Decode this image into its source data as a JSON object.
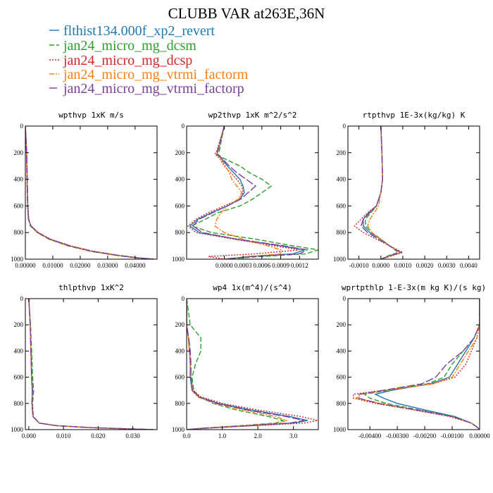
{
  "figure_title": "CLUBB VAR at263E,36N",
  "legend": [
    {
      "label": "flthist134.000f_xp2_revert",
      "color": "#1f77b4",
      "dash": "solid"
    },
    {
      "label": "jan24_micro_mg_dcsm",
      "color": "#2ca02c",
      "dash": "dashed"
    },
    {
      "label": "jan24_micro_mg_dcsp",
      "color": "#d62728",
      "dash": "dotted"
    },
    {
      "label": "jan24_micro_mg_vtrmi_factorm",
      "color": "#ff7f0e",
      "dash": "dashdot"
    },
    {
      "label": "jan24_micro_mg_vtrmi_factorp",
      "color": "#7b3f9e",
      "dash": "longdash"
    }
  ],
  "chart_data": [
    {
      "type": "line",
      "title": "wpthvp   1xK m/s",
      "xlim": [
        0,
        0.048
      ],
      "ylim": [
        1000,
        0
      ],
      "xticks": [
        0,
        0.01,
        0.02,
        0.03,
        0.04
      ],
      "xtick_labels": [
        "0.00000",
        "0.01000",
        "0.02000",
        "0.03000",
        "0.04000"
      ],
      "yticks": [
        0,
        200,
        400,
        600,
        800,
        1000
      ],
      "ytick_labels": [
        "0",
        "200",
        "400",
        "600",
        "800",
        "1000"
      ],
      "y": [
        0,
        200,
        400,
        600,
        700,
        750,
        800,
        850,
        900,
        940,
        970,
        990,
        1000
      ],
      "series": [
        {
          "values": [
            0,
            0.0005,
            0.0007,
            0.0009,
            0.0012,
            0.002,
            0.0045,
            0.0088,
            0.016,
            0.024,
            0.033,
            0.041,
            0.047
          ]
        },
        {
          "values": [
            0,
            0.0004,
            0.0006,
            0.0008,
            0.0011,
            0.0018,
            0.0043,
            0.0085,
            0.0155,
            0.0235,
            0.0325,
            0.04,
            0.046
          ]
        },
        {
          "values": [
            0,
            0.0004,
            0.0006,
            0.0008,
            0.0011,
            0.0021,
            0.0048,
            0.0092,
            0.0166,
            0.0248,
            0.0338,
            0.0415,
            0.0468
          ]
        },
        {
          "values": [
            0,
            0.0005,
            0.0007,
            0.0009,
            0.0012,
            0.0019,
            0.0044,
            0.0087,
            0.0158,
            0.0238,
            0.0328,
            0.0405,
            0.0462
          ]
        },
        {
          "values": [
            0,
            0.0005,
            0.0007,
            0.0009,
            0.0012,
            0.002,
            0.0046,
            0.009,
            0.0162,
            0.0243,
            0.0332,
            0.0409,
            0.0465
          ]
        }
      ]
    },
    {
      "type": "line",
      "title": "wp2thvp   1xK m^2/s^2",
      "xlim": [
        -0.0006,
        0.0015
      ],
      "ylim": [
        1000,
        0
      ],
      "xticks": [
        0,
        0.0003,
        0.0006,
        0.0009,
        0.0012
      ],
      "xtick_labels": [
        "0.0000",
        "0.0003",
        "0.0006",
        "0.0009",
        "0.0012"
      ],
      "yticks": [
        0,
        200,
        400,
        600,
        800,
        1000
      ],
      "ytick_labels": [
        "0",
        "200",
        "400",
        "600",
        "800",
        "1000"
      ],
      "y": [
        0,
        190,
        210,
        240,
        300,
        350,
        400,
        450,
        500,
        550,
        600,
        650,
        700,
        750,
        800,
        850,
        900,
        930,
        960,
        980,
        1000
      ],
      "series": [
        {
          "values": [
            0,
            -0.0001,
            -0.00012,
            -5e-05,
            5e-05,
            0.00015,
            0.00025,
            0.0003,
            0.00032,
            0.00025,
            5e-05,
            -0.0002,
            -0.00042,
            -0.00055,
            -0.0004,
            0.0002,
            0.0009,
            0.00128,
            0.0011,
            0.0004,
            0.0
          ]
        },
        {
          "values": [
            0,
            -8e-05,
            -0.00011,
            -2e-05,
            0.00025,
            0.0004,
            0.0006,
            0.00075,
            0.0006,
            0.00045,
            0.00025,
            -0.0001,
            -0.0003,
            -0.00052,
            -0.0002,
            0.0005,
            0.0011,
            0.0015,
            0.0013,
            0.0006,
            0.0
          ]
        },
        {
          "values": [
            0,
            -0.00012,
            -0.00015,
            -8e-05,
            0.0,
            0.0001,
            0.0002,
            0.00028,
            0.0003,
            0.00024,
            0.0,
            -0.00025,
            -0.00045,
            -0.00058,
            -0.00045,
            0.00015,
            0.0008,
            0.0012,
            0.0005,
            -0.00025,
            0.0
          ]
        },
        {
          "values": [
            0,
            -0.0001,
            -0.00012,
            -6e-05,
            2e-05,
            8e-05,
            0.00012,
            0.0002,
            0.00028,
            0.00022,
            5e-05,
            -5e-05,
            -0.00012,
            -0.00015,
            0.0,
            0.0003,
            0.0007,
            0.0009,
            0.0009,
            0.0004,
            0.0
          ]
        },
        {
          "values": [
            0,
            -0.00011,
            -0.00013,
            -4e-05,
            8e-05,
            0.0002,
            0.00035,
            0.0005,
            0.00038,
            0.00026,
            5e-05,
            -0.00018,
            -0.0004,
            -0.0005,
            -0.00035,
            0.0002,
            0.00095,
            0.00132,
            0.0012,
            0.00045,
            0.0
          ]
        }
      ]
    },
    {
      "type": "line",
      "title": "rtpthvp   1E-3x(kg/kg) K",
      "xlim": [
        -0.0015,
        0.0045
      ],
      "ylim": [
        1000,
        0
      ],
      "xticks": [
        -0.001,
        0,
        0.001,
        0.002,
        0.003,
        0.004
      ],
      "xtick_labels": [
        "-0.0010",
        "0.0000",
        "0.0010",
        "0.0020",
        "0.0030",
        "0.0040"
      ],
      "yticks": [
        0,
        200,
        400,
        600,
        800,
        1000
      ],
      "ytick_labels": [
        "0",
        "200",
        "400",
        "600",
        "800",
        "1000"
      ],
      "y": [
        0,
        200,
        400,
        500,
        600,
        650,
        700,
        750,
        800,
        850,
        900,
        950,
        970,
        1000
      ],
      "series": [
        {
          "values": [
            0,
            5e-05,
            8e-05,
            0.0,
            -0.0002,
            -0.00055,
            -0.0008,
            -0.0008,
            -0.0005,
            0.0,
            0.0004,
            0.0009,
            0.0005,
            0.0
          ]
        },
        {
          "values": [
            0,
            5e-05,
            8e-05,
            0.0,
            -0.0002,
            -0.00045,
            -0.0007,
            -0.0007,
            -0.0004,
            0.0,
            0.0004,
            0.0008,
            0.0004,
            0.0
          ]
        },
        {
          "values": [
            0,
            5e-05,
            8e-05,
            0.0,
            -0.0002,
            -0.0006,
            -0.0009,
            -0.0012,
            -0.0008,
            -0.0002,
            0.0004,
            0.001,
            0.0006,
            0.0
          ]
        },
        {
          "values": [
            0,
            5e-05,
            8e-05,
            0.0,
            -0.0001,
            -0.0003,
            -0.0005,
            -0.0006,
            -0.0004,
            0.0,
            0.0004,
            0.0009,
            0.0005,
            0.0
          ]
        },
        {
          "values": [
            0,
            5e-05,
            8e-05,
            0.0,
            -0.0002,
            -0.0005,
            -0.0008,
            -0.0009,
            -0.0006,
            -0.0001,
            0.0004,
            0.0009,
            0.0005,
            0.0
          ]
        }
      ]
    },
    {
      "type": "line",
      "title": "thlpthvp   1xK^2",
      "xlim": [
        -0.001,
        0.037
      ],
      "ylim": [
        1000,
        0
      ],
      "xticks": [
        0,
        0.01,
        0.02,
        0.03
      ],
      "xtick_labels": [
        "0.000",
        "0.010",
        "0.020",
        "0.030"
      ],
      "yticks": [
        0,
        200,
        400,
        600,
        800,
        1000
      ],
      "ytick_labels": [
        "0",
        "200",
        "400",
        "600",
        "800",
        "1000"
      ],
      "y": [
        0,
        200,
        400,
        600,
        700,
        800,
        900,
        950,
        970,
        985,
        995,
        1000
      ],
      "series": [
        {
          "values": [
            0,
            0.0004,
            0.0006,
            0.0008,
            0.0011,
            0.0009,
            0.0012,
            0.003,
            0.008,
            0.018,
            0.03,
            0.036
          ]
        },
        {
          "values": [
            0,
            0.0005,
            0.0008,
            0.0011,
            0.0014,
            0.0011,
            0.0013,
            0.003,
            0.008,
            0.018,
            0.03,
            0.036
          ]
        },
        {
          "values": [
            0,
            0.0004,
            0.0006,
            0.0008,
            0.001,
            0.0009,
            0.0012,
            0.003,
            0.008,
            0.018,
            0.03,
            0.036
          ]
        },
        {
          "values": [
            0,
            0.0004,
            0.0006,
            0.0008,
            0.001,
            0.0009,
            0.0012,
            0.003,
            0.008,
            0.018,
            0.03,
            0.036
          ]
        },
        {
          "values": [
            0,
            0.0004,
            0.0006,
            0.0008,
            0.001,
            0.0009,
            0.0012,
            0.003,
            0.008,
            0.018,
            0.03,
            0.036
          ]
        }
      ]
    },
    {
      "type": "line",
      "title": "wp4   1x(m^4)/(s^4)",
      "xlim": [
        0,
        3.7
      ],
      "ylim": [
        1000,
        0
      ],
      "xticks": [
        0,
        1,
        2,
        3
      ],
      "xtick_labels": [
        "0.0",
        "1.0",
        "2.0",
        "3.0"
      ],
      "yticks": [
        0,
        200,
        400,
        600,
        800,
        1000
      ],
      "ytick_labels": [
        "0",
        "200",
        "400",
        "600",
        "800",
        "1000"
      ],
      "y": [
        0,
        200,
        300,
        400,
        500,
        600,
        700,
        750,
        800,
        850,
        900,
        930,
        950,
        970,
        990,
        1000
      ],
      "series": [
        {
          "values": [
            0,
            0.0,
            0.05,
            0.08,
            0.1,
            0.1,
            0.15,
            0.35,
            0.9,
            1.8,
            2.9,
            3.4,
            3.0,
            1.8,
            0.5,
            0.0
          ]
        },
        {
          "values": [
            0,
            0.1,
            0.4,
            0.4,
            0.25,
            0.15,
            0.2,
            0.35,
            0.75,
            1.4,
            2.3,
            2.7,
            2.5,
            1.5,
            0.4,
            0.0
          ]
        },
        {
          "values": [
            0,
            0.0,
            0.05,
            0.08,
            0.1,
            0.12,
            0.18,
            0.4,
            1.0,
            2.0,
            3.2,
            3.68,
            3.3,
            1.9,
            0.5,
            0.0
          ]
        },
        {
          "values": [
            0,
            0.0,
            0.05,
            0.08,
            0.1,
            0.12,
            0.15,
            0.3,
            0.8,
            1.6,
            2.5,
            2.8,
            2.6,
            1.6,
            0.4,
            0.0
          ]
        },
        {
          "values": [
            0,
            0.0,
            0.06,
            0.1,
            0.12,
            0.12,
            0.16,
            0.35,
            0.85,
            1.7,
            2.8,
            3.3,
            2.9,
            1.7,
            0.5,
            0.0
          ]
        }
      ]
    },
    {
      "type": "line",
      "title": "wprtpthlp   1-E-3x(m kg K)/(s kg)",
      "xlim": [
        -0.0048,
        0.0
      ],
      "ylim": [
        1000,
        0
      ],
      "xticks": [
        -0.004,
        -0.003,
        -0.002,
        -0.001,
        0
      ],
      "xtick_labels": [
        "-0.00400",
        "-0.00300",
        "-0.00200",
        "-0.00100",
        "0.00000"
      ],
      "yticks": [
        0,
        200,
        400,
        600,
        800,
        1000
      ],
      "ytick_labels": [
        "0",
        "200",
        "400",
        "600",
        "800",
        "1000"
      ],
      "y": [
        0,
        200,
        300,
        400,
        500,
        600,
        650,
        700,
        730,
        760,
        800,
        850,
        900,
        950,
        980,
        1000
      ],
      "series": [
        {
          "values": [
            0,
            0.0,
            -0.0002,
            -0.0005,
            -0.0008,
            -0.0011,
            -0.0018,
            -0.0032,
            -0.0038,
            -0.0035,
            -0.003,
            -0.002,
            -0.0009,
            -0.0003,
            -0.0001,
            0.0
          ]
        },
        {
          "values": [
            0,
            0.0,
            -0.0002,
            -0.0006,
            -0.001,
            -0.0013,
            -0.0019,
            -0.0033,
            -0.0042,
            -0.004,
            -0.0034,
            -0.0022,
            -0.001,
            -0.0003,
            -0.0001,
            0.0
          ]
        },
        {
          "values": [
            0,
            0.0,
            -0.0001,
            -0.0003,
            -0.0005,
            -0.0009,
            -0.0017,
            -0.0035,
            -0.0046,
            -0.0046,
            -0.0038,
            -0.0024,
            -0.0011,
            -0.0003,
            -0.0001,
            0.0
          ]
        },
        {
          "values": [
            0,
            0.0,
            -0.0001,
            -0.0004,
            -0.0007,
            -0.001,
            -0.0017,
            -0.0034,
            -0.0043,
            -0.0045,
            -0.0036,
            -0.0023,
            -0.001,
            -0.0003,
            -0.0001,
            0.0
          ]
        },
        {
          "values": [
            0,
            0.0,
            -0.0002,
            -0.0006,
            -0.0012,
            -0.0016,
            -0.0021,
            -0.0035,
            -0.0044,
            -0.0044,
            -0.0037,
            -0.0023,
            -0.001,
            -0.0003,
            -0.0001,
            0.0
          ]
        }
      ]
    }
  ]
}
